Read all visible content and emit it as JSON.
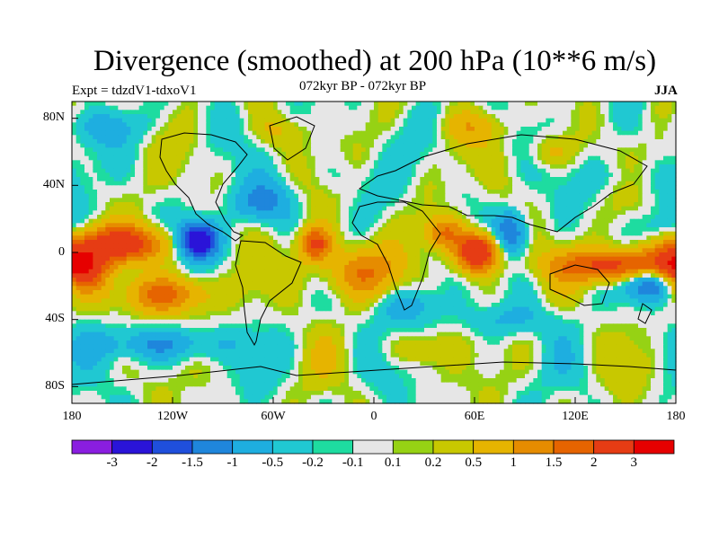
{
  "title": "Divergence (smoothed) at 200 hPa (10**6 m/s)",
  "experiment_label": "Expt = tdzdV1-tdxoV1",
  "period_label": "072kyr BP - 072kyr BP",
  "season_label": "JJA",
  "map": {
    "lat_ticks": [
      "80N",
      "40N",
      "0",
      "40S",
      "80S"
    ],
    "lon_ticks": [
      "180",
      "120W",
      "60W",
      "0",
      "60E",
      "120E",
      "180"
    ],
    "background_color": "#e6e6e6"
  },
  "colorbar": {
    "colors": [
      "#8a1ee0",
      "#2a14d8",
      "#1f4fdc",
      "#1f86dc",
      "#1eaee0",
      "#20c8d2",
      "#1edca0",
      "#e6e6e6",
      "#96d214",
      "#c8c800",
      "#e6b400",
      "#e68c00",
      "#e66400",
      "#e63c14",
      "#e60000"
    ],
    "labels": [
      "-3",
      "-2",
      "-1.5",
      "-1",
      "-0.5",
      "-0.2",
      "-0.1",
      "0.1",
      "0.2",
      "0.5",
      "1",
      "1.5",
      "2",
      "3"
    ]
  },
  "chart_data": {
    "type": "heatmap",
    "variable": "Divergence (smoothed) at 200 hPa",
    "units": "10**6 m/s",
    "xlabel": "",
    "ylabel": "",
    "xlim": [
      -180,
      180
    ],
    "ylim": [
      -90,
      90
    ],
    "contour_levels": [
      -3,
      -2,
      -1.5,
      -1,
      -0.5,
      -0.2,
      -0.1,
      0.1,
      0.2,
      0.5,
      1,
      1.5,
      2,
      3
    ],
    "features": [
      {
        "lon": -153,
        "lat": 5,
        "value": 2.5,
        "sx": 26,
        "sy": 8
      },
      {
        "lon": -105,
        "lat": 7,
        "value": -3.2,
        "sx": 9,
        "sy": 8
      },
      {
        "lon": -175,
        "lat": -10,
        "value": 2.0,
        "sx": 10,
        "sy": 9
      },
      {
        "lon": -125,
        "lat": -25,
        "value": 1.6,
        "sx": 20,
        "sy": 8
      },
      {
        "lon": -128,
        "lat": -55,
        "value": -1.0,
        "sx": 30,
        "sy": 7
      },
      {
        "lon": -35,
        "lat": 5,
        "value": 2.2,
        "sx": 7,
        "sy": 7
      },
      {
        "lon": -12,
        "lat": -12,
        "value": 1.3,
        "sx": 20,
        "sy": 11
      },
      {
        "lon": 62,
        "lat": 0,
        "value": 3.2,
        "sx": 9,
        "sy": 8
      },
      {
        "lon": 42,
        "lat": 12,
        "value": 1.5,
        "sx": 8,
        "sy": 7
      },
      {
        "lon": 148,
        "lat": -8,
        "value": 2.6,
        "sx": 26,
        "sy": 7
      },
      {
        "lon": 165,
        "lat": -18,
        "value": -1.8,
        "sx": 11,
        "sy": 7
      },
      {
        "lon": 82,
        "lat": 12,
        "value": -1.6,
        "sx": 7,
        "sy": 9
      },
      {
        "lon": -68,
        "lat": 30,
        "value": -1.0,
        "sx": 14,
        "sy": 8
      },
      {
        "lon": 175,
        "lat": 12,
        "value": -0.8,
        "sx": 12,
        "sy": 8
      },
      {
        "lon": 18,
        "lat": -32,
        "value": -0.8,
        "sx": 14,
        "sy": 8
      },
      {
        "lon": 80,
        "lat": -40,
        "value": -0.6,
        "sx": 18,
        "sy": 7
      },
      {
        "lon": -160,
        "lat": 75,
        "value": -0.5,
        "sx": 20,
        "sy": 7
      },
      {
        "lon": 105,
        "lat": 60,
        "value": 0.7,
        "sx": 10,
        "sy": 7
      },
      {
        "lon": 60,
        "lat": 75,
        "value": 0.6,
        "sx": 14,
        "sy": 6
      },
      {
        "lon": 28,
        "lat": -58,
        "value": 0.5,
        "sx": 16,
        "sy": 6
      },
      {
        "lon": -55,
        "lat": 72,
        "value": 0.4,
        "sx": 12,
        "sy": 6
      },
      {
        "lon": 145,
        "lat": 45,
        "value": -0.4,
        "sx": 14,
        "sy": 8
      },
      {
        "lon": -20,
        "lat": 45,
        "value": -0.3,
        "sx": 10,
        "sy": 8
      }
    ],
    "wave_terms": [
      {
        "amp": 0.3,
        "kx": 4,
        "ky": 3,
        "phase": 0.5
      },
      {
        "amp": 0.25,
        "kx": 6,
        "ky": 4,
        "phase": 1.7
      },
      {
        "amp": 0.2,
        "kx": 9,
        "ky": 5,
        "phase": 2.9
      }
    ]
  }
}
